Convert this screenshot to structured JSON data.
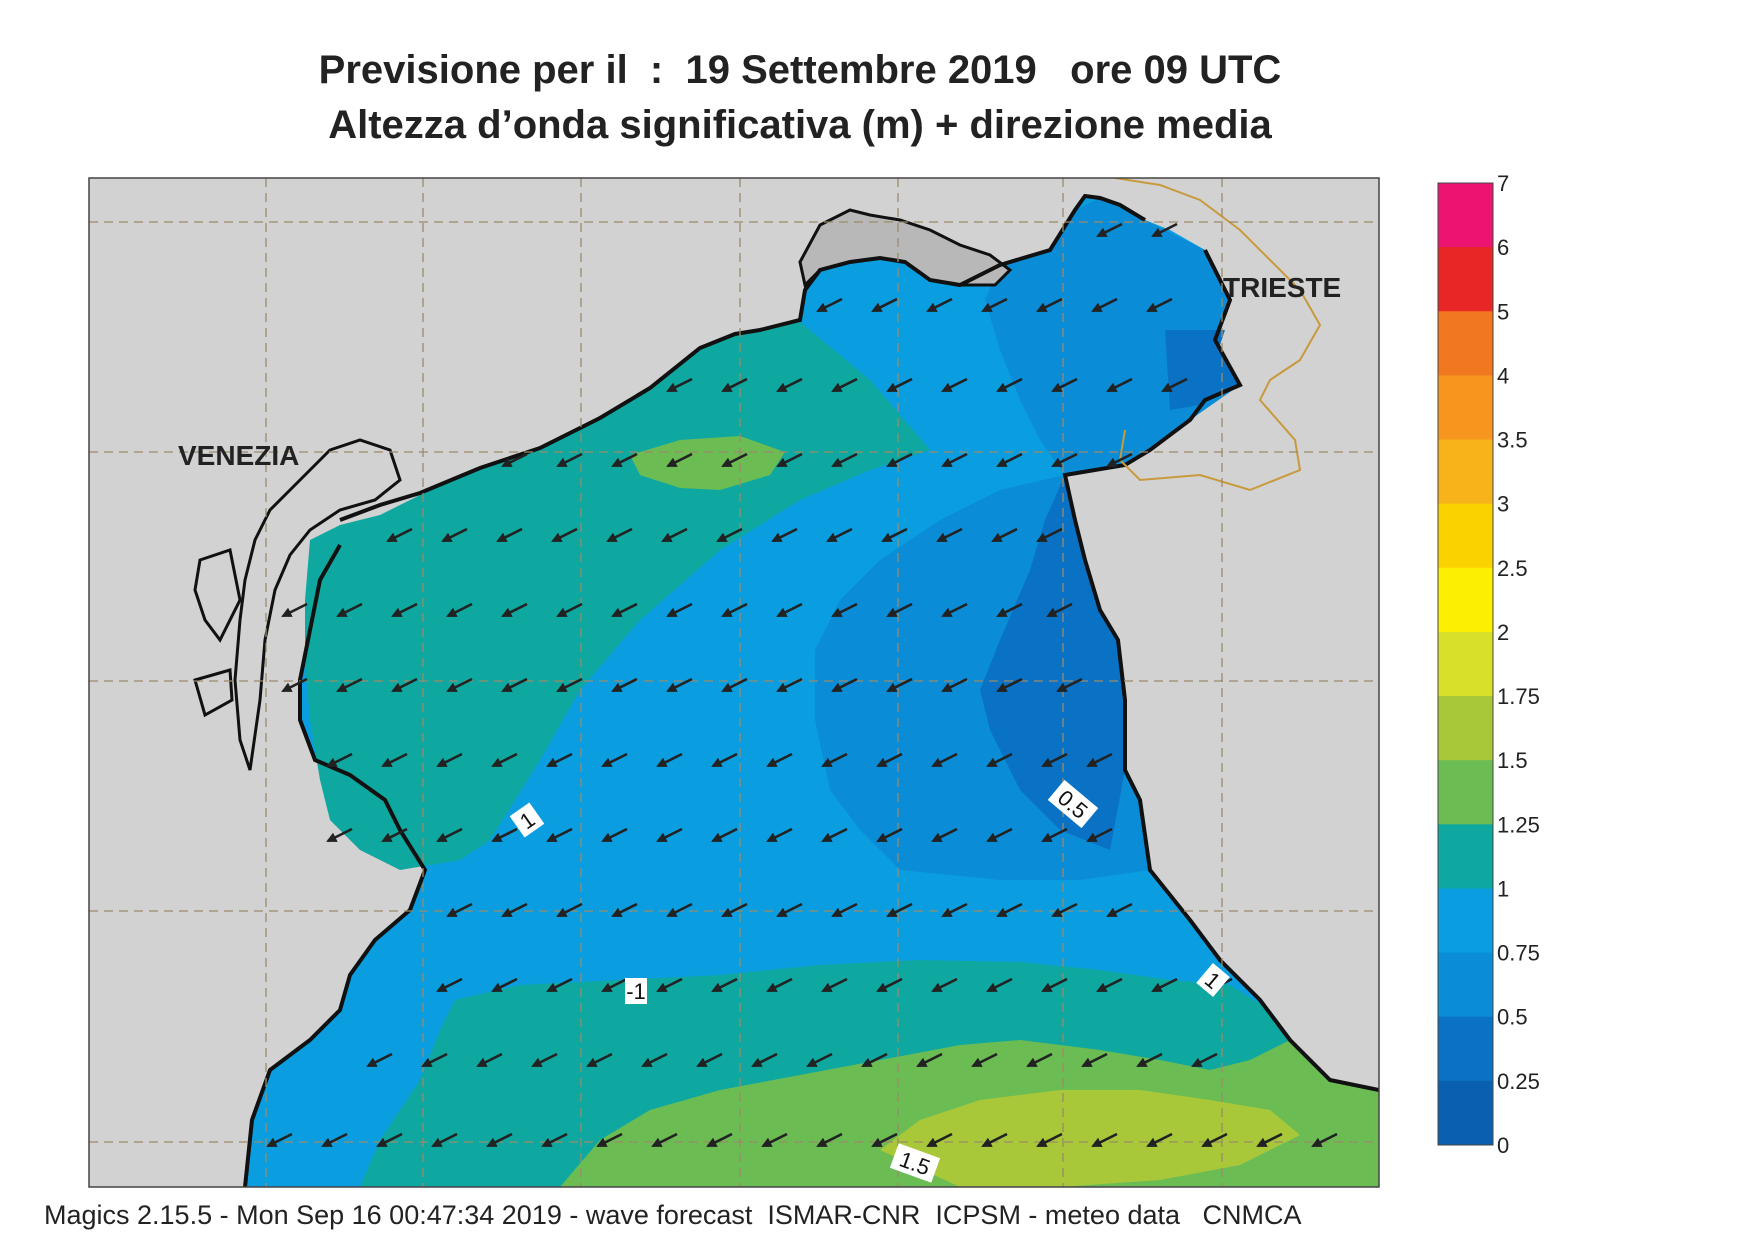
{
  "title": {
    "line1": "Previsione per il  :  19 Settembre 2019   ore 09 UTC",
    "line2": "Altezza d’onda significativa (m) + direzione media"
  },
  "map": {
    "variable": "significant wave height (m)",
    "arrow_direction": "towards south-west (mean wave direction)",
    "place_labels": [
      "VENEZIA",
      "TRIESTE"
    ],
    "contour_labels": [
      {
        "text": "1"
      },
      {
        "text": "-1"
      },
      {
        "text": "1"
      },
      {
        "text": "0.5"
      },
      {
        "text": "1.5"
      }
    ],
    "colors": {
      "land": "#d2d2d2",
      "coast": "#111111",
      "border": "#c89a3c",
      "grid": "#9a8a6a"
    }
  },
  "colorbar": {
    "labels": [
      "7",
      "6",
      "5",
      "4",
      "3.5",
      "3",
      "2.5",
      "2",
      "1.75",
      "1.5",
      "1.25",
      "1",
      "0.75",
      "0.5",
      "0.25",
      "0"
    ],
    "colors": [
      "#ec1470",
      "#e82626",
      "#f07820",
      "#f6961e",
      "#f8b21a",
      "#fad200",
      "#fcf000",
      "#d8e02a",
      "#a8c83a",
      "#6cbc54",
      "#0ea8a0",
      "#0a9ee0",
      "#0a8cd6",
      "#0a72c4",
      "#0a60b0"
    ]
  },
  "footer": "Magics 2.15.5 - Mon Sep 16 00:47:34 2019 - wave forecast  ISMAR-CNR  ICPSM - meteo data   CNMCA"
}
